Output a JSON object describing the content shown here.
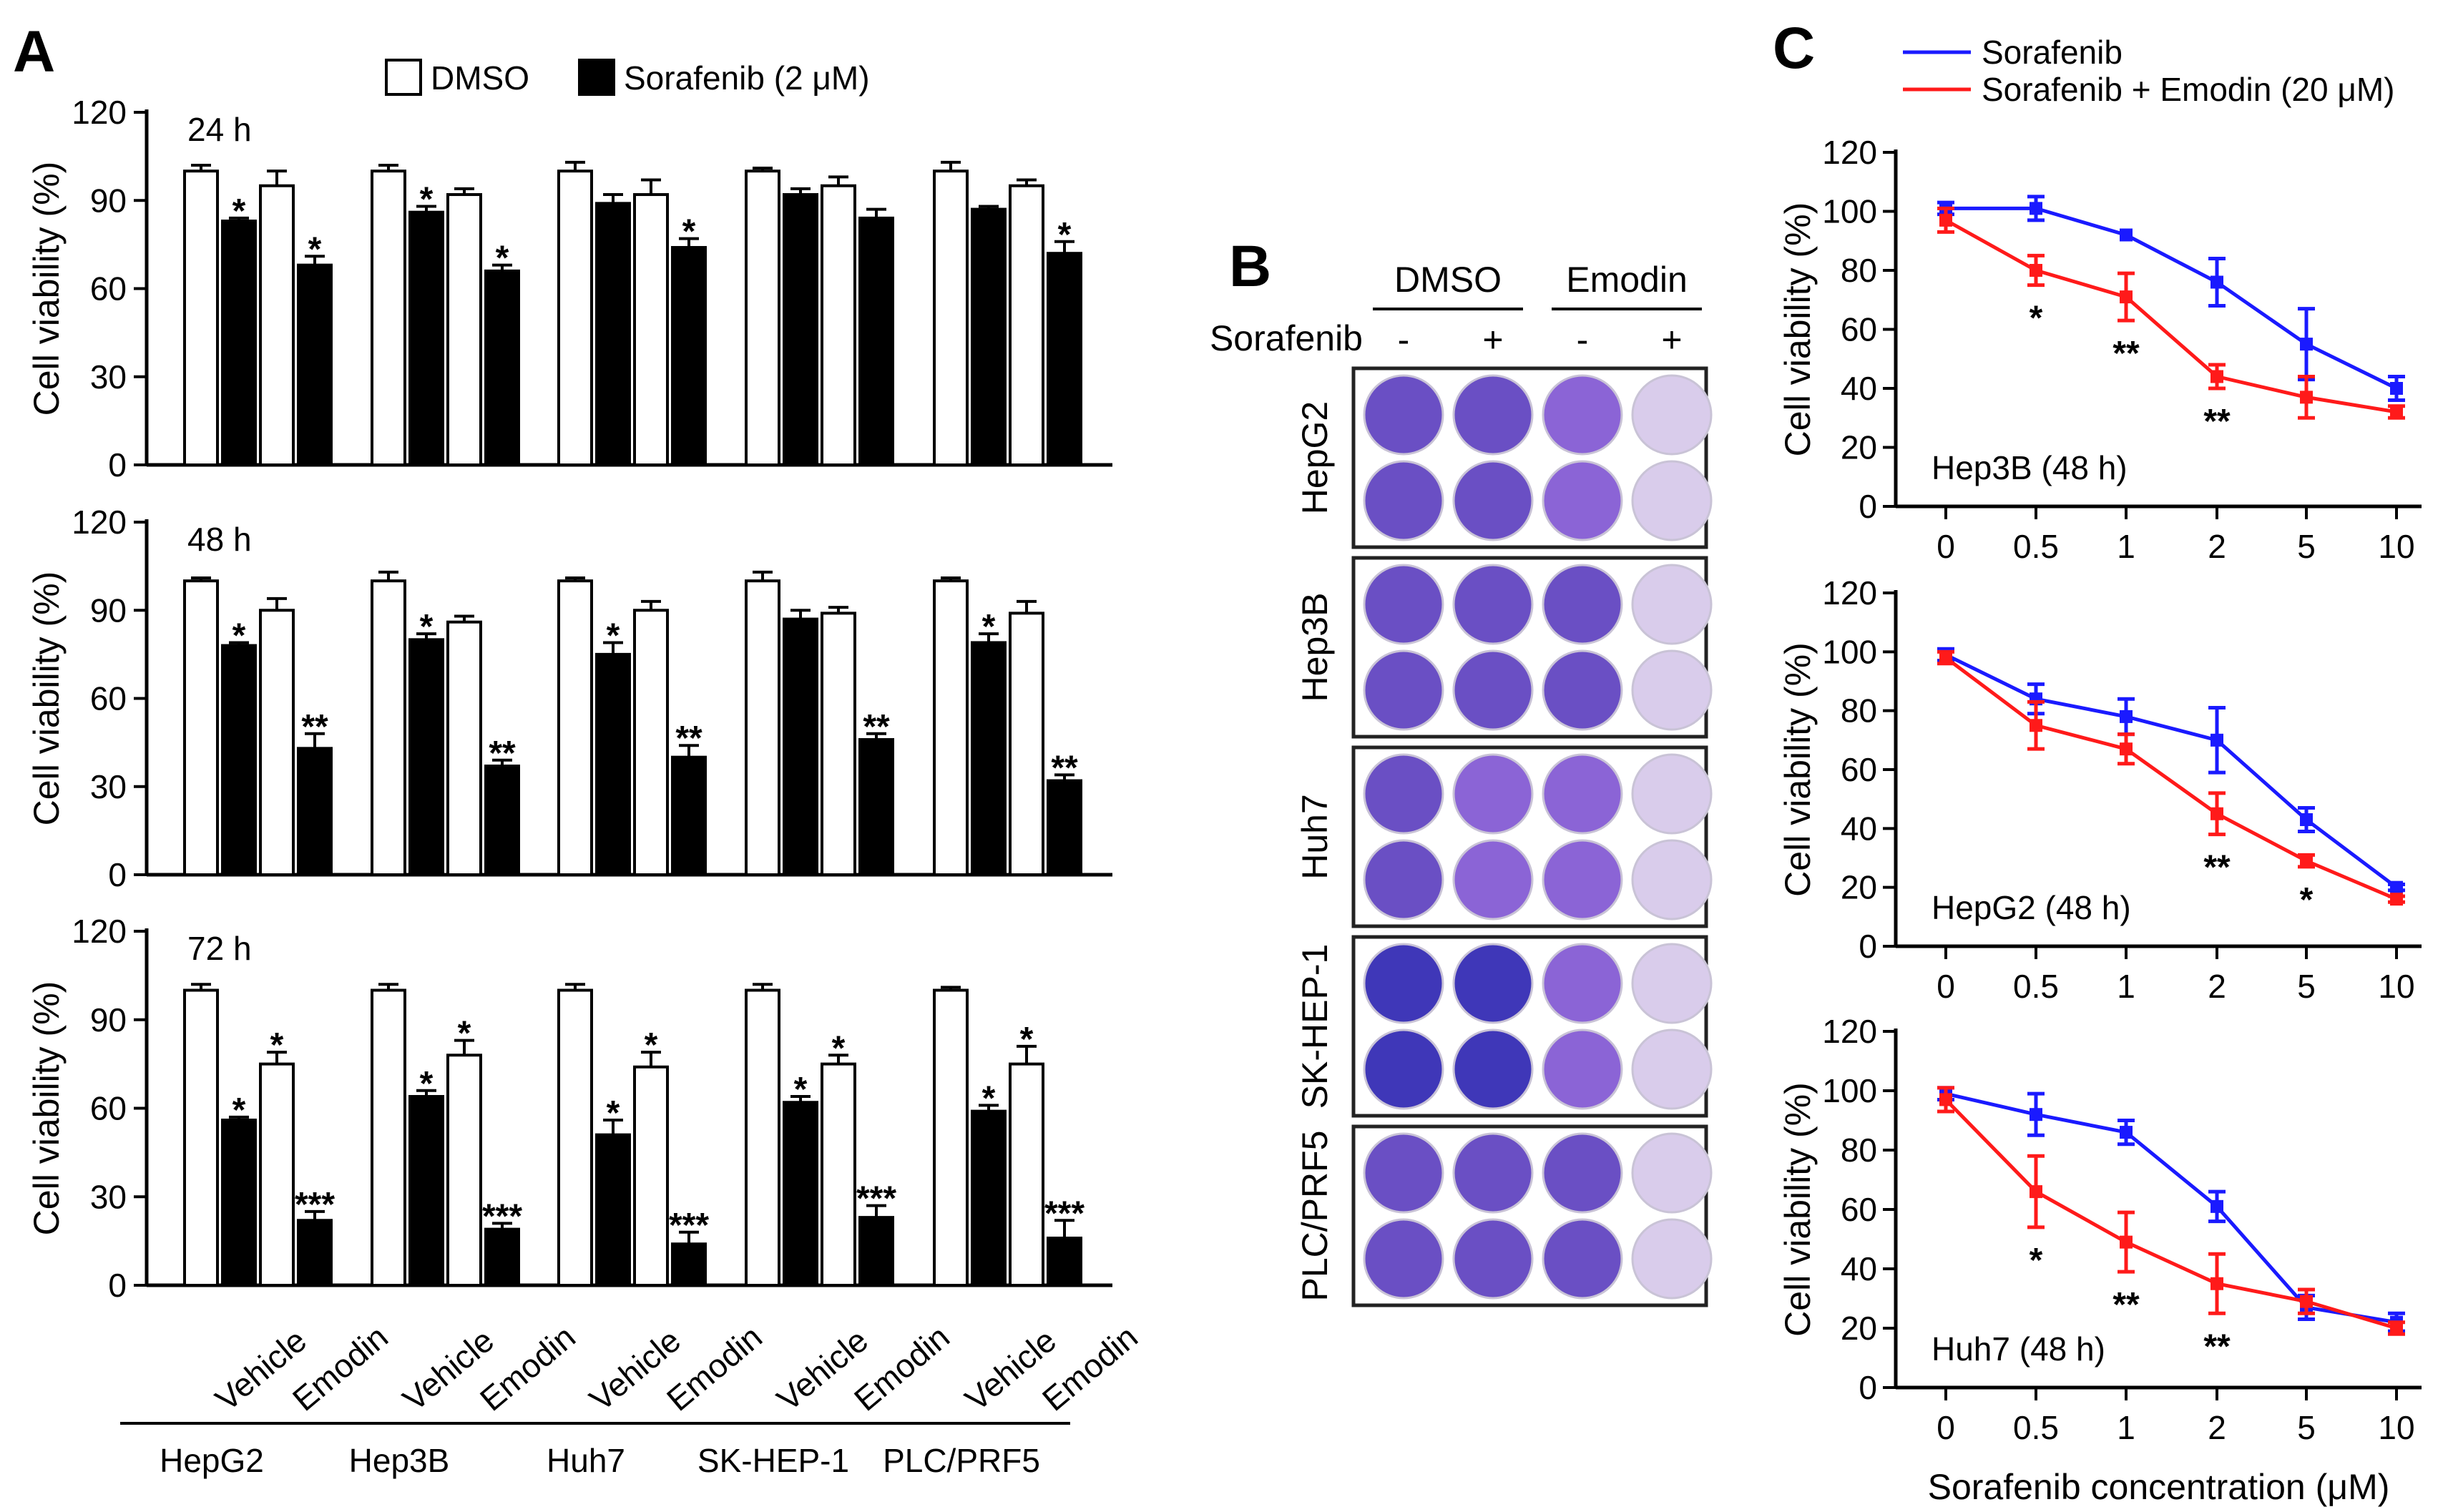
{
  "panel_letters": {
    "a": "A",
    "b": "B",
    "c": "C"
  },
  "colors": {
    "dmso_bar": "#ffffff",
    "sorafenib_bar": "#000000",
    "sorafenib_line": "#1a1aff",
    "combo_line": "#ff1a1a",
    "well_deep": "#6a4fc4",
    "well_mid": "#8b64d6",
    "well_pale": "#d9cceb"
  },
  "chart_data": [
    {
      "id": "A",
      "type": "bar",
      "legend": [
        {
          "key": "dmso",
          "label": "DMSO"
        },
        {
          "key": "sorafenib",
          "label": "Sorafenib (2 μM)"
        }
      ],
      "ylabel": "Cell viability (%)",
      "ylim": [
        0,
        120
      ],
      "yticks": [
        0,
        30,
        60,
        90,
        120
      ],
      "conditions": [
        "Vehicle",
        "Emodin"
      ],
      "groups": [
        "HepG2",
        "Hep3B",
        "Huh7",
        "SK-HEP-1",
        "PLC/PRF5"
      ],
      "subpanels": [
        {
          "time": "24 h",
          "values": [
            [
              {
                "v": 100,
                "e": 2,
                "s": ""
              },
              {
                "v": 83,
                "e": 1,
                "s": "*"
              },
              {
                "v": 95,
                "e": 5,
                "s": ""
              },
              {
                "v": 68,
                "e": 3,
                "s": "*"
              }
            ],
            [
              {
                "v": 100,
                "e": 2,
                "s": ""
              },
              {
                "v": 86,
                "e": 2,
                "s": "*"
              },
              {
                "v": 92,
                "e": 2,
                "s": ""
              },
              {
                "v": 66,
                "e": 2,
                "s": "*"
              }
            ],
            [
              {
                "v": 100,
                "e": 3,
                "s": ""
              },
              {
                "v": 89,
                "e": 3,
                "s": ""
              },
              {
                "v": 92,
                "e": 5,
                "s": ""
              },
              {
                "v": 74,
                "e": 3,
                "s": "*"
              }
            ],
            [
              {
                "v": 100,
                "e": 1,
                "s": ""
              },
              {
                "v": 92,
                "e": 2,
                "s": ""
              },
              {
                "v": 95,
                "e": 3,
                "s": ""
              },
              {
                "v": 84,
                "e": 3,
                "s": ""
              }
            ],
            [
              {
                "v": 100,
                "e": 3,
                "s": ""
              },
              {
                "v": 87,
                "e": 1,
                "s": ""
              },
              {
                "v": 95,
                "e": 2,
                "s": ""
              },
              {
                "v": 72,
                "e": 4,
                "s": "*"
              }
            ]
          ]
        },
        {
          "time": "48 h",
          "values": [
            [
              {
                "v": 100,
                "e": 1,
                "s": ""
              },
              {
                "v": 78,
                "e": 1,
                "s": "*"
              },
              {
                "v": 90,
                "e": 4,
                "s": ""
              },
              {
                "v": 43,
                "e": 5,
                "s": "**"
              }
            ],
            [
              {
                "v": 100,
                "e": 3,
                "s": ""
              },
              {
                "v": 80,
                "e": 2,
                "s": "*"
              },
              {
                "v": 86,
                "e": 2,
                "s": ""
              },
              {
                "v": 37,
                "e": 2,
                "s": "**"
              }
            ],
            [
              {
                "v": 100,
                "e": 1,
                "s": ""
              },
              {
                "v": 75,
                "e": 4,
                "s": "*"
              },
              {
                "v": 90,
                "e": 3,
                "s": ""
              },
              {
                "v": 40,
                "e": 4,
                "s": "**"
              }
            ],
            [
              {
                "v": 100,
                "e": 3,
                "s": ""
              },
              {
                "v": 87,
                "e": 3,
                "s": ""
              },
              {
                "v": 89,
                "e": 2,
                "s": ""
              },
              {
                "v": 46,
                "e": 2,
                "s": "**"
              }
            ],
            [
              {
                "v": 100,
                "e": 1,
                "s": ""
              },
              {
                "v": 79,
                "e": 3,
                "s": "*"
              },
              {
                "v": 89,
                "e": 4,
                "s": ""
              },
              {
                "v": 32,
                "e": 2,
                "s": "**"
              }
            ]
          ]
        },
        {
          "time": "72 h",
          "values": [
            [
              {
                "v": 100,
                "e": 2,
                "s": ""
              },
              {
                "v": 56,
                "e": 1,
                "s": "*"
              },
              {
                "v": 75,
                "e": 4,
                "s": "*"
              },
              {
                "v": 22,
                "e": 3,
                "s": "***"
              }
            ],
            [
              {
                "v": 100,
                "e": 2,
                "s": ""
              },
              {
                "v": 64,
                "e": 2,
                "s": "*"
              },
              {
                "v": 78,
                "e": 5,
                "s": "*"
              },
              {
                "v": 19,
                "e": 2,
                "s": "***"
              }
            ],
            [
              {
                "v": 100,
                "e": 2,
                "s": ""
              },
              {
                "v": 51,
                "e": 5,
                "s": "*"
              },
              {
                "v": 74,
                "e": 5,
                "s": "*"
              },
              {
                "v": 14,
                "e": 4,
                "s": "***"
              }
            ],
            [
              {
                "v": 100,
                "e": 2,
                "s": ""
              },
              {
                "v": 62,
                "e": 2,
                "s": "*"
              },
              {
                "v": 75,
                "e": 3,
                "s": "*"
              },
              {
                "v": 23,
                "e": 4,
                "s": "***"
              }
            ],
            [
              {
                "v": 100,
                "e": 1,
                "s": ""
              },
              {
                "v": 59,
                "e": 2,
                "s": "*"
              },
              {
                "v": 75,
                "e": 6,
                "s": "*"
              },
              {
                "v": 16,
                "e": 6,
                "s": "***"
              }
            ]
          ]
        }
      ]
    },
    {
      "id": "B",
      "type": "plate",
      "header_groups": [
        "DMSO",
        "Emodin"
      ],
      "sorafenib_label": "Sorafenib",
      "signs": [
        "-",
        "+",
        "-",
        "+"
      ],
      "cell_lines": [
        "HepG2",
        "Hep3B",
        "Huh7",
        "SK-HEP-1",
        "PLC/PRF5"
      ],
      "well_intensity": [
        [
          1.0,
          0.95,
          0.8,
          0.25
        ],
        [
          1.0,
          0.95,
          0.85,
          0.3
        ],
        [
          0.9,
          0.75,
          0.7,
          0.15
        ],
        [
          1.0,
          0.95,
          0.8,
          0.3
        ],
        [
          1.0,
          0.95,
          0.85,
          0.3
        ]
      ]
    },
    {
      "id": "C",
      "type": "line",
      "legend": [
        {
          "key": "sorafenib",
          "label": "Sorafenib"
        },
        {
          "key": "combo",
          "label": "Sorafenib + Emodin (20 μM)"
        }
      ],
      "ylabel": "Cell viability (%)",
      "xlabel": "Sorafenib concentration (μM)",
      "ylim": [
        0,
        120
      ],
      "yticks": [
        0,
        20,
        40,
        60,
        80,
        100,
        120
      ],
      "x": [
        "0",
        "0.5",
        "1",
        "2",
        "5",
        "10"
      ],
      "subpanels": [
        {
          "title": "Hep3B (48 h)",
          "sorafenib": [
            {
              "v": 101,
              "e": 2
            },
            {
              "v": 101,
              "e": 4
            },
            {
              "v": 92,
              "e": 0
            },
            {
              "v": 76,
              "e": 8
            },
            {
              "v": 55,
              "e": 12
            },
            {
              "v": 40,
              "e": 4
            }
          ],
          "combo": [
            {
              "v": 97,
              "e": 4
            },
            {
              "v": 80,
              "e": 5
            },
            {
              "v": 71,
              "e": 8
            },
            {
              "v": 44,
              "e": 4
            },
            {
              "v": 37,
              "e": 7
            },
            {
              "v": 32,
              "e": 2
            }
          ],
          "sig": [
            "",
            "*",
            "**",
            "**",
            "",
            ""
          ]
        },
        {
          "title": "HepG2 (48 h)",
          "sorafenib": [
            {
              "v": 99,
              "e": 2
            },
            {
              "v": 84,
              "e": 5
            },
            {
              "v": 78,
              "e": 6
            },
            {
              "v": 70,
              "e": 11
            },
            {
              "v": 43,
              "e": 4
            },
            {
              "v": 20,
              "e": 1
            }
          ],
          "combo": [
            {
              "v": 98,
              "e": 2
            },
            {
              "v": 75,
              "e": 8
            },
            {
              "v": 67,
              "e": 5
            },
            {
              "v": 45,
              "e": 7
            },
            {
              "v": 29,
              "e": 2
            },
            {
              "v": 16,
              "e": 1
            }
          ],
          "sig": [
            "",
            "",
            "",
            "**",
            "*",
            ""
          ]
        },
        {
          "title": "Huh7 (48 h)",
          "sorafenib": [
            {
              "v": 99,
              "e": 2
            },
            {
              "v": 92,
              "e": 7
            },
            {
              "v": 86,
              "e": 4
            },
            {
              "v": 61,
              "e": 5
            },
            {
              "v": 27,
              "e": 4
            },
            {
              "v": 22,
              "e": 3
            }
          ],
          "combo": [
            {
              "v": 97,
              "e": 4
            },
            {
              "v": 66,
              "e": 12
            },
            {
              "v": 49,
              "e": 10
            },
            {
              "v": 35,
              "e": 10
            },
            {
              "v": 29,
              "e": 4
            },
            {
              "v": 20,
              "e": 2
            }
          ],
          "sig": [
            "",
            "*",
            "**",
            "**",
            "",
            ""
          ]
        }
      ]
    }
  ]
}
